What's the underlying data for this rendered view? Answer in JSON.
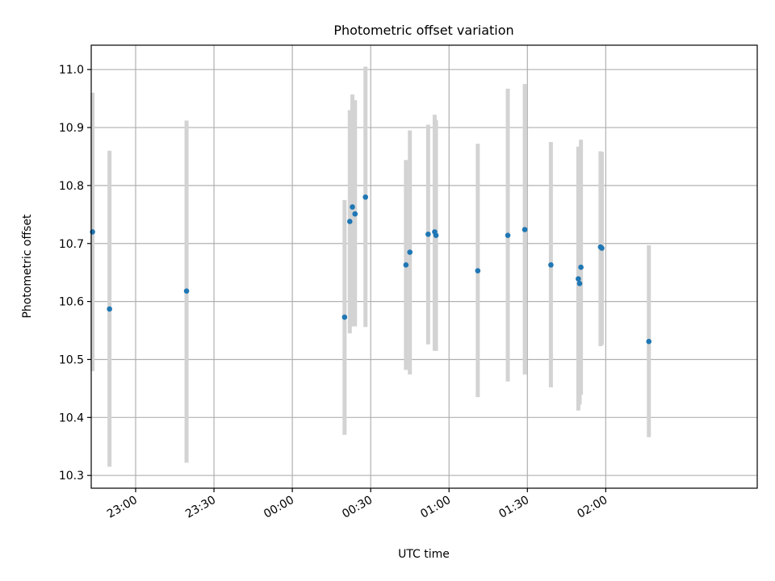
{
  "chart_data": {
    "type": "scatter",
    "title": "Photometric offset variation",
    "xlabel": "UTC time",
    "ylabel": "Photometric offset",
    "xlim": [
      "22:43:00",
      "02:58:00"
    ],
    "ylim": [
      10.278,
      11.042
    ],
    "grid": true,
    "x_ticks": [
      {
        "value": "23:00:00",
        "label": "23:00"
      },
      {
        "value": "23:30:00",
        "label": "23:30"
      },
      {
        "value": "00:00:00",
        "label": "00:00"
      },
      {
        "value": "00:30:00",
        "label": "00:30"
      },
      {
        "value": "01:00:00",
        "label": "01:00"
      },
      {
        "value": "01:30:00",
        "label": "01:30"
      },
      {
        "value": "02:00:00",
        "label": "02:00"
      }
    ],
    "y_ticks": [
      {
        "value": 10.3,
        "label": "10.3"
      },
      {
        "value": 10.4,
        "label": "10.4"
      },
      {
        "value": 10.5,
        "label": "10.5"
      },
      {
        "value": 10.6,
        "label": "10.6"
      },
      {
        "value": 10.7,
        "label": "10.7"
      },
      {
        "value": 10.8,
        "label": "10.8"
      },
      {
        "value": 10.9,
        "label": "10.9"
      },
      {
        "value": 11.0,
        "label": "11.0"
      }
    ],
    "points": [
      {
        "time": "22:43:30",
        "y": 10.72,
        "ymin": 10.48,
        "ymax": 10.96
      },
      {
        "time": "22:50:00",
        "y": 10.587,
        "ymin": 10.315,
        "ymax": 10.86
      },
      {
        "time": "23:19:30",
        "y": 10.618,
        "ymin": 10.322,
        "ymax": 10.912
      },
      {
        "time": "00:20:00",
        "y": 10.573,
        "ymin": 10.37,
        "ymax": 10.775
      },
      {
        "time": "00:22:00",
        "y": 10.738,
        "ymin": 10.545,
        "ymax": 10.93
      },
      {
        "time": "00:23:00",
        "y": 10.763,
        "ymin": 10.557,
        "ymax": 10.957
      },
      {
        "time": "00:24:00",
        "y": 10.751,
        "ymin": 10.557,
        "ymax": 10.947
      },
      {
        "time": "00:28:00",
        "y": 10.78,
        "ymin": 10.556,
        "ymax": 11.005
      },
      {
        "time": "00:43:30",
        "y": 10.663,
        "ymin": 10.482,
        "ymax": 10.844
      },
      {
        "time": "00:45:00",
        "y": 10.685,
        "ymin": 10.474,
        "ymax": 10.895
      },
      {
        "time": "00:52:00",
        "y": 10.716,
        "ymin": 10.526,
        "ymax": 10.905
      },
      {
        "time": "00:54:30",
        "y": 10.72,
        "ymin": 10.515,
        "ymax": 10.922
      },
      {
        "time": "00:55:00",
        "y": 10.714,
        "ymin": 10.515,
        "ymax": 10.913
      },
      {
        "time": "01:11:00",
        "y": 10.653,
        "ymin": 10.435,
        "ymax": 10.872
      },
      {
        "time": "01:22:30",
        "y": 10.714,
        "ymin": 10.462,
        "ymax": 10.967
      },
      {
        "time": "01:29:00",
        "y": 10.724,
        "ymin": 10.474,
        "ymax": 10.975
      },
      {
        "time": "01:39:00",
        "y": 10.663,
        "ymin": 10.452,
        "ymax": 10.875
      },
      {
        "time": "01:49:30",
        "y": 10.639,
        "ymin": 10.412,
        "ymax": 10.867
      },
      {
        "time": "01:50:00",
        "y": 10.631,
        "ymin": 10.422,
        "ymax": 10.84
      },
      {
        "time": "01:50:30",
        "y": 10.659,
        "ymin": 10.439,
        "ymax": 10.879
      },
      {
        "time": "01:58:00",
        "y": 10.694,
        "ymin": 10.523,
        "ymax": 10.859
      },
      {
        "time": "01:58:30",
        "y": 10.692,
        "ymin": 10.525,
        "ymax": 10.858
      },
      {
        "time": "02:16:30",
        "y": 10.531,
        "ymin": 10.366,
        "ymax": 10.697
      }
    ],
    "colors": {
      "point": "#1f77b4",
      "errorbar": "#d3d3d3",
      "grid": "#b0b0b0"
    }
  }
}
